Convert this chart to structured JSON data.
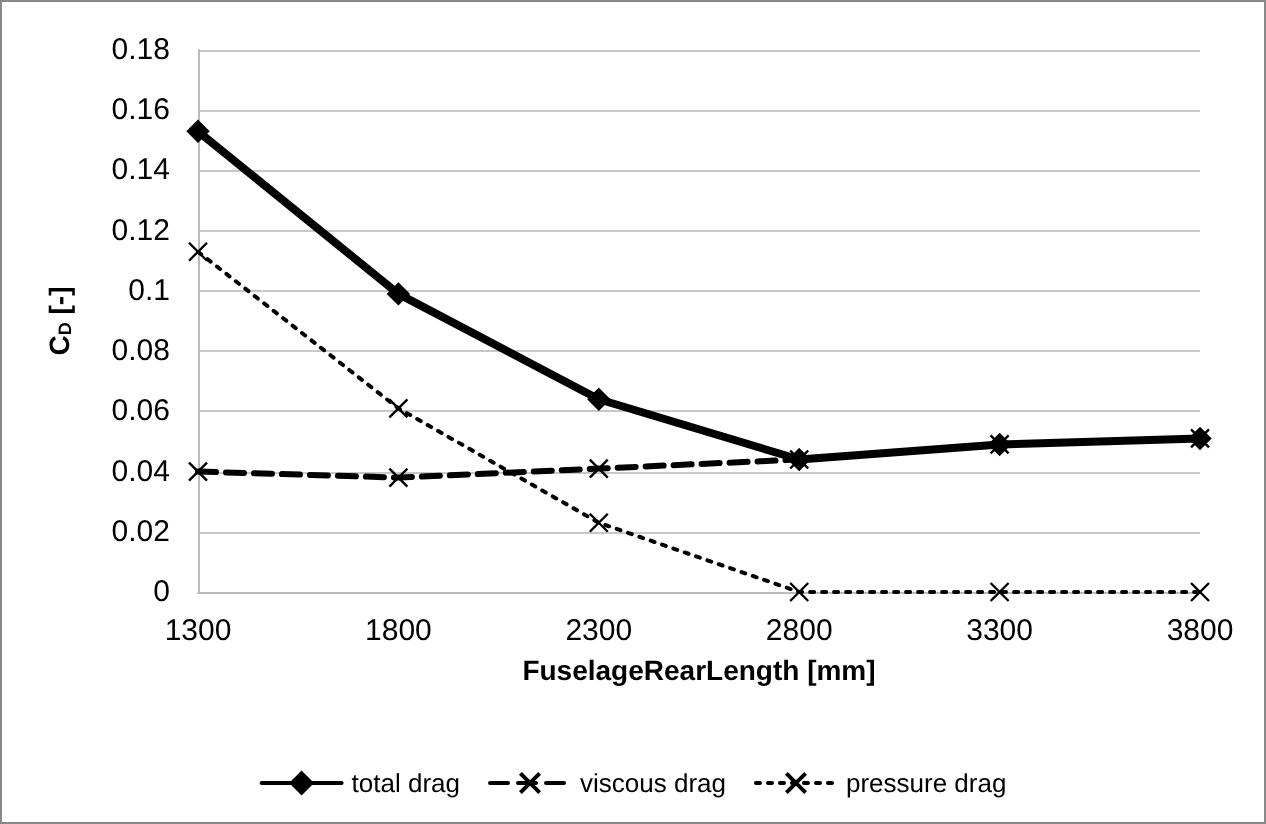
{
  "chart_data": {
    "type": "line",
    "xlabel": "FuselageRearLength [mm]",
    "ylabel": "C$_{D}$ [-]",
    "x": [
      1300,
      1800,
      2300,
      2800,
      3300,
      3800
    ],
    "series": [
      {
        "name": "total drag",
        "color": "#000000",
        "values": [
          0.153,
          0.099,
          0.064,
          0.044,
          0.049,
          0.051
        ],
        "marker": "diamond",
        "line_style": "solid"
      },
      {
        "name": "viscous drag",
        "color": "#000000",
        "values": [
          0.04,
          0.038,
          0.041,
          0.044,
          0.049,
          0.051
        ],
        "marker": "cross",
        "line_style": "dashed"
      },
      {
        "name": "pressure drag",
        "color": "#000000",
        "values": [
          0.113,
          0.061,
          0.023,
          0,
          0,
          0
        ],
        "marker": "cross",
        "line_style": "dotted"
      }
    ],
    "xlim": [
      1300,
      3800
    ],
    "xticks": [
      1300,
      1800,
      2300,
      2800,
      3300,
      3800
    ],
    "ylim": [
      0,
      0.18
    ],
    "yticks": [
      0,
      0.02,
      0.04,
      0.06,
      0.08,
      0.1,
      0.12,
      0.14,
      0.16,
      0.18
    ],
    "grid": "y",
    "legend": "bottom"
  }
}
